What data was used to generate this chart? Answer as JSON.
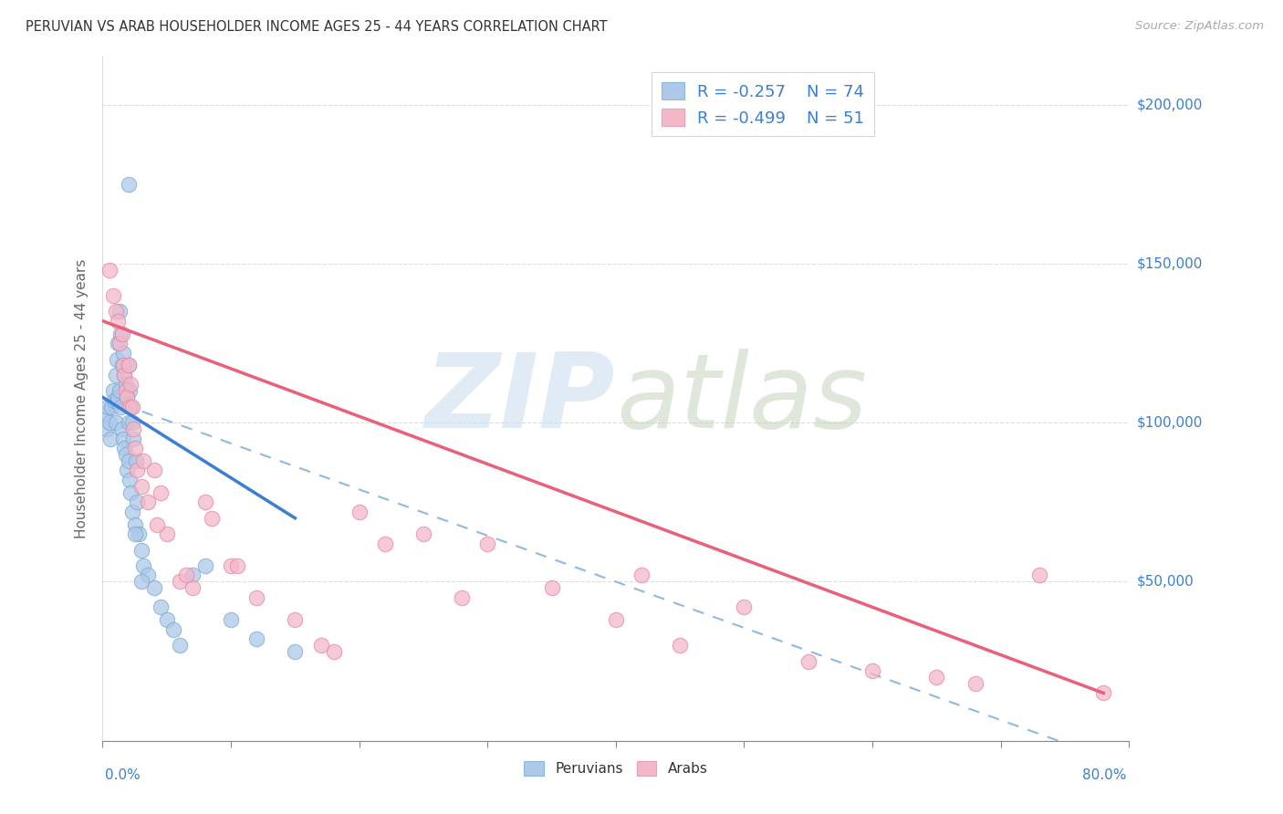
{
  "title": "PERUVIAN VS ARAB HOUSEHOLDER INCOME AGES 25 - 44 YEARS CORRELATION CHART",
  "source": "Source: ZipAtlas.com",
  "ylabel": "Householder Income Ages 25 - 44 years",
  "xmin": 0.0,
  "xmax": 80.0,
  "ymin": 0,
  "ymax": 215000,
  "peruvian_dot_facecolor": "#adc8e8",
  "peruvian_dot_edgecolor": "#7aadd4",
  "arab_dot_facecolor": "#f2b8c8",
  "arab_dot_edgecolor": "#e888a4",
  "peruvian_line_color": "#3a7fd4",
  "arab_line_color": "#e8607a",
  "dashed_line_color": "#90b8e0",
  "legend_box_color_peruvian": "#adc8e8",
  "legend_box_edge_peruvian": "#90b8d8",
  "legend_box_color_arab": "#f2b8c8",
  "legend_box_edge_arab": "#e8a0b8",
  "text_color_dark": "#333333",
  "text_color_blue": "#3a7fd4",
  "text_color_source": "#aaaaaa",
  "grid_color": "#dddddd",
  "ytick_label_color": "#3a7fd4",
  "xlabel_color": "#3a7fd4",
  "peruvian_x": [
    0.2,
    0.3,
    0.4,
    0.5,
    0.6,
    0.7,
    0.8,
    0.9,
    1.0,
    1.0,
    1.1,
    1.1,
    1.2,
    1.2,
    1.3,
    1.3,
    1.4,
    1.4,
    1.5,
    1.5,
    1.6,
    1.6,
    1.7,
    1.7,
    1.8,
    1.8,
    1.9,
    1.9,
    2.0,
    2.0,
    2.0,
    2.1,
    2.1,
    2.2,
    2.2,
    2.3,
    2.3,
    2.4,
    2.5,
    2.6,
    2.7,
    2.8,
    3.0,
    3.2,
    3.5,
    4.0,
    4.5,
    5.0,
    5.5,
    6.0,
    7.0,
    8.0,
    10.0,
    12.0,
    15.0,
    2.0,
    2.5,
    3.0
  ],
  "peruvian_y": [
    103000,
    98000,
    105000,
    100000,
    95000,
    105000,
    110000,
    107000,
    115000,
    100000,
    120000,
    107000,
    125000,
    108000,
    135000,
    110000,
    128000,
    105000,
    118000,
    98000,
    122000,
    95000,
    115000,
    92000,
    112000,
    90000,
    108000,
    85000,
    118000,
    100000,
    88000,
    110000,
    82000,
    105000,
    78000,
    100000,
    72000,
    95000,
    68000,
    88000,
    75000,
    65000,
    60000,
    55000,
    52000,
    48000,
    42000,
    38000,
    35000,
    30000,
    52000,
    55000,
    38000,
    32000,
    28000,
    175000,
    65000,
    50000
  ],
  "arab_x": [
    0.5,
    0.8,
    1.0,
    1.2,
    1.3,
    1.5,
    1.6,
    1.7,
    1.8,
    1.9,
    2.0,
    2.1,
    2.2,
    2.3,
    2.4,
    2.5,
    2.7,
    3.0,
    3.5,
    4.0,
    4.5,
    5.0,
    6.0,
    7.0,
    8.0,
    10.0,
    12.0,
    15.0,
    17.0,
    20.0,
    25.0,
    30.0,
    35.0,
    40.0,
    45.0,
    50.0,
    55.0,
    60.0,
    65.0,
    68.0,
    73.0,
    78.0,
    3.2,
    4.2,
    6.5,
    8.5,
    10.5,
    18.0,
    22.0,
    28.0,
    42.0
  ],
  "arab_y": [
    148000,
    140000,
    135000,
    132000,
    125000,
    128000,
    118000,
    115000,
    110000,
    108000,
    118000,
    105000,
    112000,
    105000,
    98000,
    92000,
    85000,
    80000,
    75000,
    85000,
    78000,
    65000,
    50000,
    48000,
    75000,
    55000,
    45000,
    38000,
    30000,
    72000,
    65000,
    62000,
    48000,
    38000,
    30000,
    42000,
    25000,
    22000,
    20000,
    18000,
    52000,
    15000,
    88000,
    68000,
    52000,
    70000,
    55000,
    28000,
    62000,
    45000,
    52000
  ],
  "peruvian_trend": [
    0.0,
    15.0,
    108000,
    70000
  ],
  "arab_trend": [
    0.0,
    78.0,
    132000,
    15000
  ],
  "dashed_trend": [
    0.0,
    80.0,
    108000,
    -8000
  ],
  "yticks": [
    0,
    50000,
    100000,
    150000,
    200000
  ],
  "ytick_labels": [
    "",
    "$50,000",
    "$100,000",
    "$150,000",
    "$200,000"
  ],
  "xtick_positions": [
    0,
    10,
    20,
    30,
    40,
    50,
    60,
    70,
    80
  ]
}
